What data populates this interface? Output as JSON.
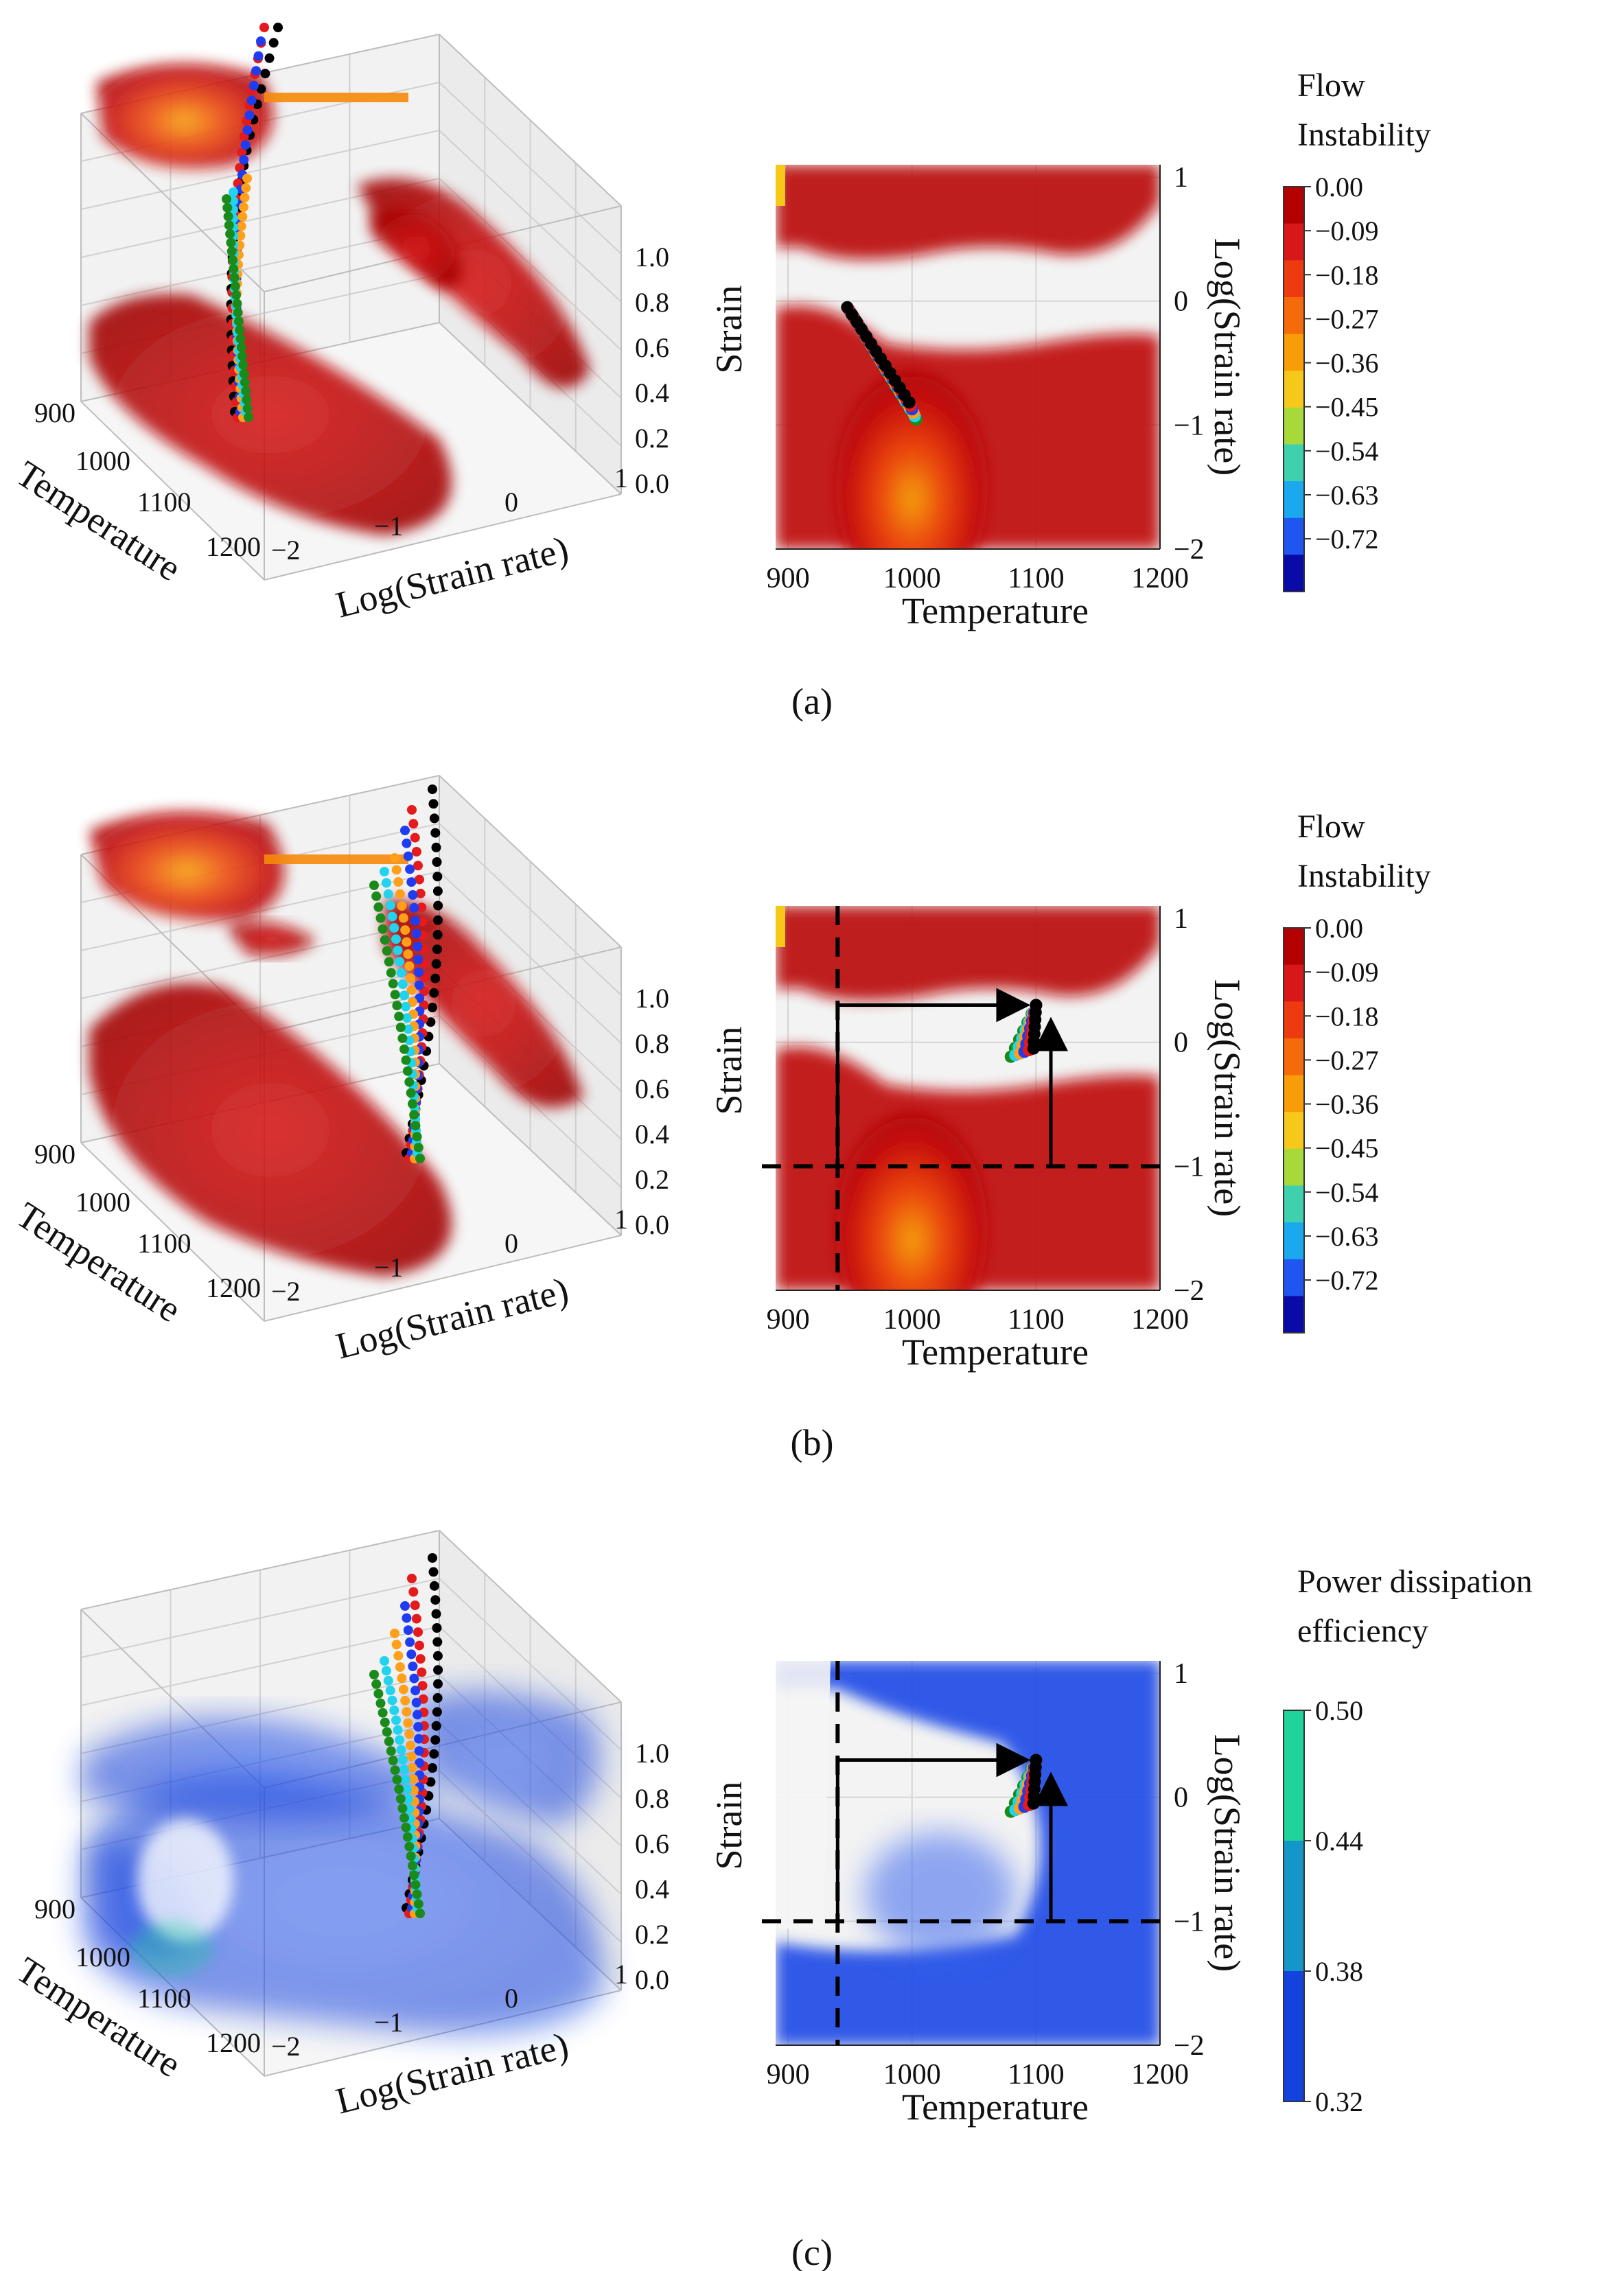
{
  "panels": [
    {
      "label": "(a)",
      "letter": "a",
      "scheme": "red",
      "arrows": false,
      "path_2d": "low",
      "colorbar": {
        "title_lines": [
          "Flow",
          "Instability"
        ],
        "ticks": [
          "0.00",
          "−0.09",
          "−0.18",
          "−0.27",
          "−0.36",
          "−0.45",
          "−0.54",
          "−0.63",
          "−0.72"
        ],
        "colors": [
          "#b30000",
          "#d81818",
          "#ee3a10",
          "#f56a0a",
          "#f89d08",
          "#f6c81a",
          "#a8d93a",
          "#3fd0b0",
          "#1aa8ee",
          "#1f56f0",
          "#0a0aa8"
        ]
      }
    },
    {
      "label": "(b)",
      "letter": "b",
      "scheme": "red",
      "arrows": true,
      "path_2d": "high",
      "colorbar": {
        "title_lines": [
          "Flow",
          "Instability"
        ],
        "ticks": [
          "0.00",
          "−0.09",
          "−0.18",
          "−0.27",
          "−0.36",
          "−0.45",
          "−0.54",
          "−0.63",
          "−0.72"
        ],
        "colors": [
          "#b30000",
          "#d81818",
          "#ee3a10",
          "#f56a0a",
          "#f89d08",
          "#f6c81a",
          "#a8d93a",
          "#3fd0b0",
          "#1aa8ee",
          "#1f56f0",
          "#0a0aa8"
        ]
      }
    },
    {
      "label": "(c)",
      "letter": "c",
      "scheme": "blue",
      "arrows": true,
      "path_2d": "high",
      "colorbar": {
        "title_lines": [
          "Power dissipation",
          "efficiency"
        ],
        "ticks": [
          "0.50",
          "0.44",
          "0.38",
          "0.32"
        ],
        "colors": [
          "#1fd39a",
          "#1596c8",
          "#1442dc"
        ]
      }
    }
  ],
  "chart_data": {
    "type": "heatmap",
    "plot_3d": {
      "temperature_ticks": [
        "900",
        "1000",
        "1100",
        "1200"
      ],
      "strain_rate_ticks": [
        "−2",
        "−1",
        "0",
        "1"
      ],
      "strain_ticks": [
        "0.0",
        "0.2",
        "0.4",
        "0.6",
        "0.8",
        "1.0"
      ],
      "xlabel": "Temperature",
      "ylabel": "Log(Strain rate)"
    },
    "plot_2d": {
      "xlabel": "Temperature",
      "ylabel_left": "Strain",
      "ylabel_right": "Log(Strain rate)",
      "x_ticks": [
        "900",
        "1000",
        "1100",
        "1200"
      ],
      "y_ticks": [
        "1",
        "0",
        "−1",
        "−2"
      ],
      "xlim": [
        890,
        1200
      ],
      "ylim": [
        -2,
        1.1
      ]
    },
    "paths": [
      {
        "color": "#000000"
      },
      {
        "color": "#e41a1c"
      },
      {
        "color": "#1f3cf0"
      },
      {
        "color": "#ff9f1a"
      },
      {
        "color": "#22d3ee"
      },
      {
        "color": "#1a8a1a"
      }
    ]
  }
}
